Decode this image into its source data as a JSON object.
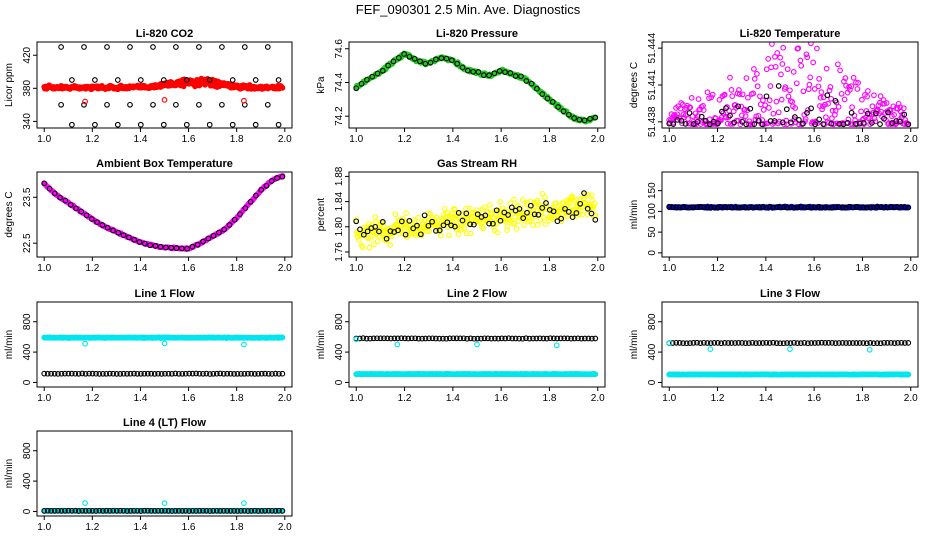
{
  "figure_title": "FEF_090301  2.5 Min. Ave. Diagnostics",
  "colors": {
    "black": "#000000",
    "red": "#ff0000",
    "green": "#22cc22",
    "magenta": "#ff00ff",
    "yellow": "#ffff00",
    "blue": "#0000cc",
    "cyan": "#00e5ee"
  },
  "chart_data": [
    {
      "type": "scatter",
      "title": "Li-820 CO2",
      "ylabel": "Licor ppm",
      "xlim": [
        0.97,
        2.03
      ],
      "ylim": [
        332,
        436
      ],
      "xticks": [
        "1.0",
        "1.2",
        "1.4",
        "1.6",
        "1.8",
        "2.0"
      ],
      "xtick_values": [
        1.0,
        1.2,
        1.4,
        1.6,
        1.8,
        2.0
      ],
      "yticks": [
        "340",
        "380",
        "420"
      ],
      "ytick_values": [
        340,
        380,
        420
      ],
      "series": [
        {
          "name": "red band",
          "color": "red",
          "filled": true,
          "pattern": "band",
          "base": 381,
          "noise": 3,
          "bump": {
            "center": 1.62,
            "width": 0.14,
            "height": 8
          },
          "n": 380
        },
        {
          "name": "black outliers",
          "color": "black",
          "pattern": "levels",
          "levels": [
            430,
            390,
            360,
            336
          ],
          "x_start": 1.07,
          "x_step": 0.0955
        },
        {
          "name": "red outliers",
          "color": "red",
          "pattern": "points",
          "points": [
            [
              1.17,
              364
            ],
            [
              1.5,
              366
            ],
            [
              1.83,
              365
            ]
          ]
        }
      ]
    },
    {
      "type": "scatter",
      "title": "Li-820 Pressure",
      "ylabel": "kPa",
      "xlim": [
        0.97,
        2.03
      ],
      "ylim": [
        74.13,
        74.64
      ],
      "xticks": [
        "1.0",
        "1.2",
        "1.4",
        "1.6",
        "1.8",
        "2.0"
      ],
      "xtick_values": [
        1.0,
        1.2,
        1.4,
        1.6,
        1.8,
        2.0
      ],
      "yticks": [
        "74.2",
        "74.4",
        "74.6"
      ],
      "ytick_values": [
        74.2,
        74.4,
        74.6
      ],
      "series": [
        {
          "name": "green trace",
          "color": "green",
          "filled": true,
          "pattern": "curve",
          "curve_x": [
            1.0,
            1.05,
            1.1,
            1.15,
            1.2,
            1.25,
            1.3,
            1.35,
            1.4,
            1.45,
            1.5,
            1.55,
            1.6,
            1.65,
            1.7,
            1.75,
            1.8,
            1.85,
            1.9,
            1.95,
            2.0
          ],
          "curve_y": [
            74.37,
            74.42,
            74.46,
            74.52,
            74.57,
            74.53,
            74.51,
            74.55,
            74.53,
            74.48,
            74.46,
            74.44,
            74.47,
            74.45,
            74.42,
            74.36,
            74.3,
            74.24,
            74.19,
            74.17,
            74.2
          ],
          "noise": 0.012,
          "n": 300
        },
        {
          "name": "black trace",
          "color": "black",
          "pattern": "curve",
          "curve_x": [
            1.0,
            1.05,
            1.1,
            1.15,
            1.2,
            1.25,
            1.3,
            1.35,
            1.4,
            1.45,
            1.5,
            1.55,
            1.6,
            1.65,
            1.7,
            1.75,
            1.8,
            1.85,
            1.9,
            1.95,
            2.0
          ],
          "curve_y": [
            74.37,
            74.42,
            74.46,
            74.52,
            74.57,
            74.53,
            74.51,
            74.55,
            74.53,
            74.48,
            74.46,
            74.44,
            74.47,
            74.45,
            74.42,
            74.36,
            74.3,
            74.24,
            74.19,
            74.17,
            74.2
          ],
          "noise": 0.01,
          "n": 46
        }
      ]
    },
    {
      "type": "scatter",
      "title": "Li-820 Temperature",
      "ylabel": "degrees C",
      "xlim": [
        0.97,
        2.03
      ],
      "ylim": [
        51.4375,
        51.4445
      ],
      "xticks": [
        "1.0",
        "1.2",
        "1.4",
        "1.6",
        "1.8",
        "2.0"
      ],
      "xtick_values": [
        1.0,
        1.2,
        1.4,
        1.6,
        1.8,
        2.0
      ],
      "yticks": [
        "51.438",
        "51.441",
        "51.444"
      ],
      "ytick_values": [
        51.438,
        51.441,
        51.444
      ],
      "series": [
        {
          "name": "magenta",
          "color": "magenta",
          "pattern": "spray",
          "base": 51.4378,
          "spread": 0.0058,
          "peak_center": 1.5,
          "peak_width": 0.28,
          "n": 320
        },
        {
          "name": "black",
          "color": "black",
          "pattern": "spray",
          "base": 51.4378,
          "spread": 0.0028,
          "peak_center": 1.5,
          "peak_width": 0.3,
          "n": 60
        }
      ]
    },
    {
      "type": "scatter",
      "title": "Ambient Box Temperature",
      "ylabel": "degrees C",
      "xlim": [
        0.97,
        2.03
      ],
      "ylim": [
        22.2,
        24.05
      ],
      "xticks": [
        "1.0",
        "1.2",
        "1.4",
        "1.6",
        "1.8",
        "2.0"
      ],
      "xtick_values": [
        1.0,
        1.2,
        1.4,
        1.6,
        1.8,
        2.0
      ],
      "yticks": [
        "22.5",
        "23.5"
      ],
      "ytick_values": [
        22.5,
        23.5
      ],
      "series": [
        {
          "name": "magenta trace",
          "color": "magenta",
          "filled": true,
          "pattern": "curve",
          "curve_x": [
            1.0,
            1.05,
            1.1,
            1.15,
            1.2,
            1.25,
            1.3,
            1.35,
            1.4,
            1.45,
            1.5,
            1.55,
            1.6,
            1.65,
            1.7,
            1.75,
            1.8,
            1.85,
            1.9,
            1.95,
            2.0
          ],
          "curve_y": [
            23.8,
            23.55,
            23.38,
            23.2,
            23.02,
            22.86,
            22.75,
            22.63,
            22.52,
            22.45,
            22.41,
            22.39,
            22.38,
            22.5,
            22.65,
            22.8,
            23.05,
            23.35,
            23.65,
            23.88,
            23.98
          ],
          "noise": 0.02,
          "n": 240
        },
        {
          "name": "black trace",
          "color": "black",
          "pattern": "curve",
          "curve_x": [
            1.0,
            1.05,
            1.1,
            1.15,
            1.2,
            1.25,
            1.3,
            1.35,
            1.4,
            1.45,
            1.5,
            1.55,
            1.6,
            1.65,
            1.7,
            1.75,
            1.8,
            1.85,
            1.9,
            1.95,
            2.0
          ],
          "curve_y": [
            23.8,
            23.55,
            23.38,
            23.2,
            23.02,
            22.86,
            22.75,
            22.63,
            22.52,
            22.45,
            22.41,
            22.39,
            22.38,
            22.5,
            22.65,
            22.8,
            23.05,
            23.35,
            23.65,
            23.88,
            23.98
          ],
          "noise": 0.015,
          "n": 46
        }
      ]
    },
    {
      "type": "scatter",
      "title": "Gas Stream RH",
      "ylabel": "percent",
      "xlim": [
        0.97,
        2.03
      ],
      "ylim": [
        1.752,
        1.887
      ],
      "xticks": [
        "1.0",
        "1.2",
        "1.4",
        "1.6",
        "1.8",
        "2.0"
      ],
      "xtick_values": [
        1.0,
        1.2,
        1.4,
        1.6,
        1.8,
        2.0
      ],
      "yticks": [
        "1.76",
        "1.80",
        "1.84",
        "1.88"
      ],
      "ytick_values": [
        1.76,
        1.8,
        1.84,
        1.88
      ],
      "series": [
        {
          "name": "yellow",
          "color": "yellow",
          "pattern": "trend",
          "start": 1.79,
          "end": 1.835,
          "noise": 0.032,
          "n": 380
        },
        {
          "name": "black",
          "color": "black",
          "pattern": "trend",
          "start": 1.79,
          "end": 1.835,
          "noise": 0.028,
          "n": 64
        }
      ]
    },
    {
      "type": "scatter",
      "title": "Sample Flow",
      "ylabel": "ml/min",
      "xlim": [
        0.97,
        2.03
      ],
      "ylim": [
        -10,
        195
      ],
      "xticks": [
        "1.0",
        "1.2",
        "1.4",
        "1.6",
        "1.8",
        "2.0"
      ],
      "xtick_values": [
        1.0,
        1.2,
        1.4,
        1.6,
        1.8,
        2.0
      ],
      "yticks": [
        "0",
        "50",
        "100",
        "150"
      ],
      "ytick_values": [
        0,
        50,
        100,
        150
      ],
      "series": [
        {
          "name": "blue band",
          "color": "blue",
          "filled": true,
          "pattern": "band",
          "base": 110,
          "noise": 2,
          "n": 300
        },
        {
          "name": "black band",
          "color": "black",
          "pattern": "band",
          "base": 110,
          "noise": 2,
          "n": 70
        }
      ]
    },
    {
      "type": "scatter",
      "title": "Line 1 Flow",
      "ylabel": "ml/min",
      "xlim": [
        0.97,
        2.03
      ],
      "ylim": [
        -60,
        1060
      ],
      "xticks": [
        "1.0",
        "1.2",
        "1.4",
        "1.6",
        "1.8",
        "2.0"
      ],
      "xtick_values": [
        1.0,
        1.2,
        1.4,
        1.6,
        1.8,
        2.0
      ],
      "yticks": [
        "0",
        "400",
        "800"
      ],
      "ytick_values": [
        0,
        400,
        800
      ],
      "series": [
        {
          "name": "cyan band",
          "color": "cyan",
          "filled": true,
          "pattern": "band",
          "base": 590,
          "noise": 6,
          "n": 300
        },
        {
          "name": "cyan dips",
          "color": "cyan",
          "pattern": "points",
          "points": [
            [
              1.17,
              510
            ],
            [
              1.5,
              515
            ],
            [
              1.83,
              500
            ]
          ]
        },
        {
          "name": "black band",
          "color": "black",
          "pattern": "band",
          "base": 115,
          "noise": 4,
          "n": 70
        }
      ]
    },
    {
      "type": "scatter",
      "title": "Line 2 Flow",
      "ylabel": "ml/min",
      "xlim": [
        0.97,
        2.03
      ],
      "ylim": [
        -60,
        1060
      ],
      "xticks": [
        "1.0",
        "1.2",
        "1.4",
        "1.6",
        "1.8",
        "2.0"
      ],
      "xtick_values": [
        1.0,
        1.2,
        1.4,
        1.6,
        1.8,
        2.0
      ],
      "yticks": [
        "0",
        "400",
        "800"
      ],
      "ytick_values": [
        0,
        400,
        800
      ],
      "series": [
        {
          "name": "cyan band",
          "color": "cyan",
          "filled": true,
          "pattern": "band",
          "base": 110,
          "noise": 4,
          "n": 300
        },
        {
          "name": "black band",
          "color": "black",
          "pattern": "band",
          "base": 580,
          "noise": 5,
          "n": 70
        },
        {
          "name": "cyan dips",
          "color": "cyan",
          "pattern": "points",
          "points": [
            [
              1.0,
              570
            ],
            [
              1.17,
              500
            ],
            [
              1.5,
              500
            ],
            [
              1.83,
              490
            ]
          ]
        }
      ]
    },
    {
      "type": "scatter",
      "title": "Line 3 Flow",
      "ylabel": "ml/min",
      "xlim": [
        0.97,
        2.03
      ],
      "ylim": [
        -60,
        1060
      ],
      "xticks": [
        "1.0",
        "1.2",
        "1.4",
        "1.6",
        "1.8",
        "2.0"
      ],
      "xtick_values": [
        1.0,
        1.2,
        1.4,
        1.6,
        1.8,
        2.0
      ],
      "yticks": [
        "0",
        "400",
        "800"
      ],
      "ytick_values": [
        0,
        400,
        800
      ],
      "series": [
        {
          "name": "cyan band",
          "color": "cyan",
          "filled": true,
          "pattern": "band",
          "base": 105,
          "noise": 4,
          "n": 300
        },
        {
          "name": "black band",
          "color": "black",
          "pattern": "band",
          "base": 520,
          "noise": 5,
          "n": 70
        },
        {
          "name": "cyan dips",
          "color": "cyan",
          "pattern": "points",
          "points": [
            [
              1.0,
              520
            ],
            [
              1.17,
              440
            ],
            [
              1.5,
              440
            ],
            [
              1.83,
              430
            ]
          ]
        }
      ]
    },
    {
      "type": "scatter",
      "title": "Line 4 (LT) Flow",
      "ylabel": "ml/min",
      "xlim": [
        0.97,
        2.03
      ],
      "ylim": [
        -60,
        1060
      ],
      "xticks": [
        "1.0",
        "1.2",
        "1.4",
        "1.6",
        "1.8",
        "2.0"
      ],
      "xtick_values": [
        1.0,
        1.2,
        1.4,
        1.6,
        1.8,
        2.0
      ],
      "yticks": [
        "0",
        "400",
        "800"
      ],
      "ytick_values": [
        0,
        400,
        800
      ],
      "series": [
        {
          "name": "cyan band",
          "color": "cyan",
          "filled": true,
          "pattern": "band",
          "base": 8,
          "noise": 3,
          "n": 300
        },
        {
          "name": "black band",
          "color": "black",
          "pattern": "band",
          "base": 8,
          "noise": 3,
          "n": 70
        },
        {
          "name": "cyan spikes",
          "color": "cyan",
          "pattern": "points",
          "points": [
            [
              1.17,
              110
            ],
            [
              1.5,
              110
            ],
            [
              1.83,
              110
            ]
          ]
        }
      ]
    }
  ]
}
